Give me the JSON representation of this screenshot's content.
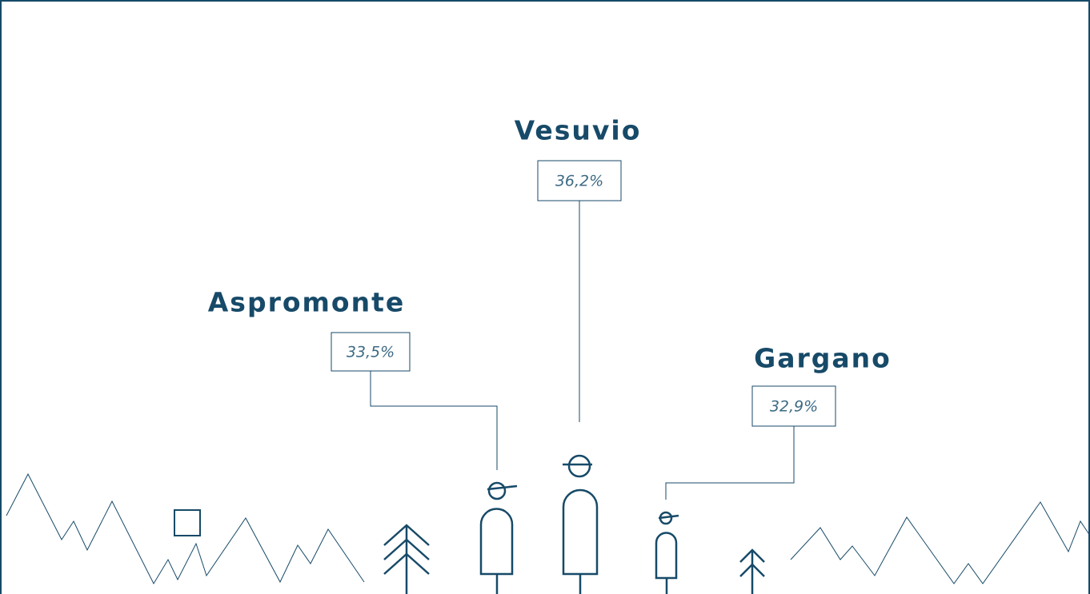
{
  "items": [
    {
      "name": "Aspromonte",
      "value": "33,5%"
    },
    {
      "name": "Vesuvio",
      "value": "36,2%"
    },
    {
      "name": "Gargano",
      "value": "32,9%"
    }
  ]
}
